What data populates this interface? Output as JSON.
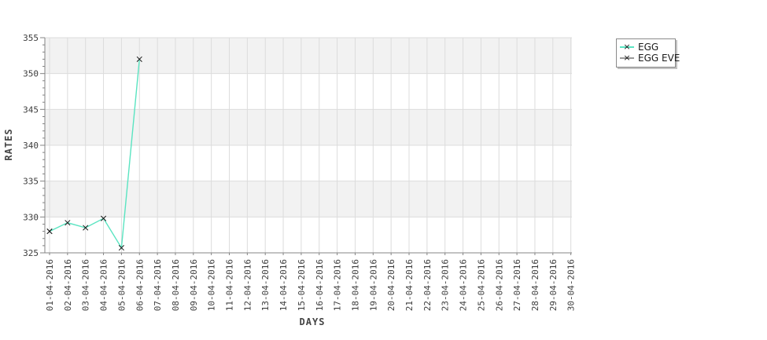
{
  "legend": {
    "marker_glyph": "×"
  },
  "chart_data": {
    "type": "line",
    "title": "",
    "xlabel": "DAYS",
    "ylabel": "RATES",
    "ylim": [
      325,
      355
    ],
    "y_ticks": [
      325,
      330,
      335,
      340,
      345,
      350,
      355
    ],
    "y_minor_tick_step": 1,
    "x_tick_rotation": -90,
    "grid": true,
    "banded_background": true,
    "legend_position": "top-right",
    "x_categories": [
      "01-04-2016",
      "02-04-2016",
      "03-04-2016",
      "04-04-2016",
      "05-04-2016",
      "06-04-2016",
      "07-04-2016",
      "08-04-2016",
      "09-04-2016",
      "10-04-2016",
      "11-04-2016",
      "12-04-2016",
      "13-04-2016",
      "14-04-2016",
      "15-04-2016",
      "16-04-2016",
      "17-04-2016",
      "18-04-2016",
      "19-04-2016",
      "20-04-2016",
      "21-04-2016",
      "22-04-2016",
      "23-04-2016",
      "24-04-2016",
      "25-04-2016",
      "26-04-2016",
      "27-04-2016",
      "28-04-2016",
      "29-04-2016",
      "30-04-2016"
    ],
    "series": [
      {
        "name": "EGG",
        "color": "#5ae4c1",
        "marker": "x",
        "marker_color": "#1a1a1a",
        "points": [
          {
            "x": "01-04-2016",
            "y": 328
          },
          {
            "x": "02-04-2016",
            "y": 329.2
          },
          {
            "x": "03-04-2016",
            "y": 328.5
          },
          {
            "x": "04-04-2016",
            "y": 329.8
          },
          {
            "x": "05-04-2016",
            "y": 325.7
          },
          {
            "x": "06-04-2016",
            "y": 352
          }
        ]
      },
      {
        "name": "EGG EVE",
        "color": "#9a9a9a",
        "marker": "x",
        "marker_color": "#1a1a1a",
        "points": [
          {
            "x": "01-04-2016",
            "y": 328
          }
        ]
      }
    ],
    "colors": {
      "background": "#ffffff",
      "band": "#f2f2f2",
      "gridline": "#dcdcdc",
      "axis": "#848484",
      "tick_text": "#3c3c3c",
      "axis_title_text": "#444444",
      "legend_border": "#8a8a8a",
      "legend_shadow": "#c2c2c2",
      "marker": "#1a1a1a"
    }
  }
}
